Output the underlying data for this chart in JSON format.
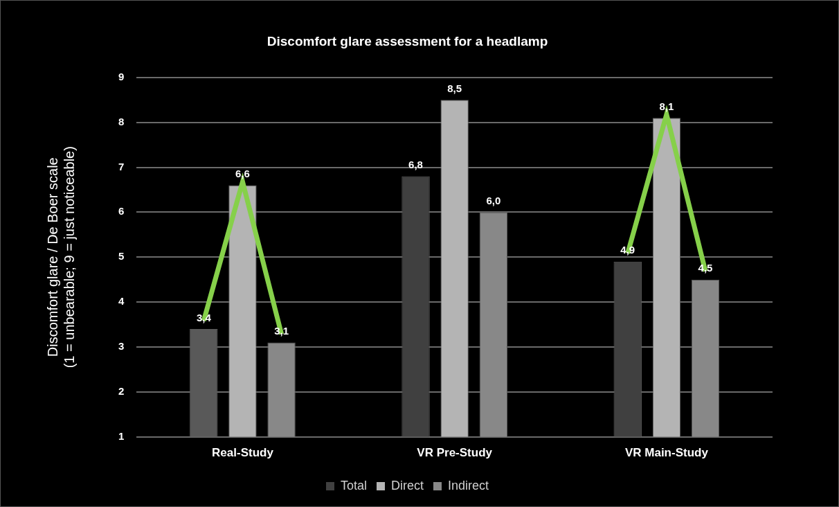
{
  "chart_data": {
    "type": "bar",
    "title": "Discomfort glare assessment for a headlamp",
    "ylabel": "Discomfort glare / De Boer scale\n(1 = unbearable; 9 = just noticeable)",
    "categories": [
      "Real-Study",
      "VR Pre-Study",
      "VR Main-Study"
    ],
    "series": [
      {
        "name": "Total",
        "color": "#404040",
        "colors": [
          "#595959",
          "#404040",
          "#404040"
        ],
        "values": [
          3.4,
          6.8,
          4.9
        ],
        "value_labels": [
          "3,4",
          "6,8",
          "4,9"
        ]
      },
      {
        "name": "Direct",
        "color": "#b4b4b4",
        "values": [
          6.6,
          8.5,
          8.1
        ],
        "value_labels": [
          "6,6",
          "8,5",
          "8,1"
        ]
      },
      {
        "name": "Indirect",
        "color": "#888888",
        "values": [
          3.1,
          6.0,
          4.5
        ],
        "value_labels": [
          "3,1",
          "6,0",
          "4,5"
        ]
      }
    ],
    "ylim": [
      1,
      9
    ],
    "yticks": [
      1,
      2,
      3,
      4,
      5,
      6,
      7,
      8,
      9
    ],
    "grid": "y",
    "legend": "bottom"
  }
}
